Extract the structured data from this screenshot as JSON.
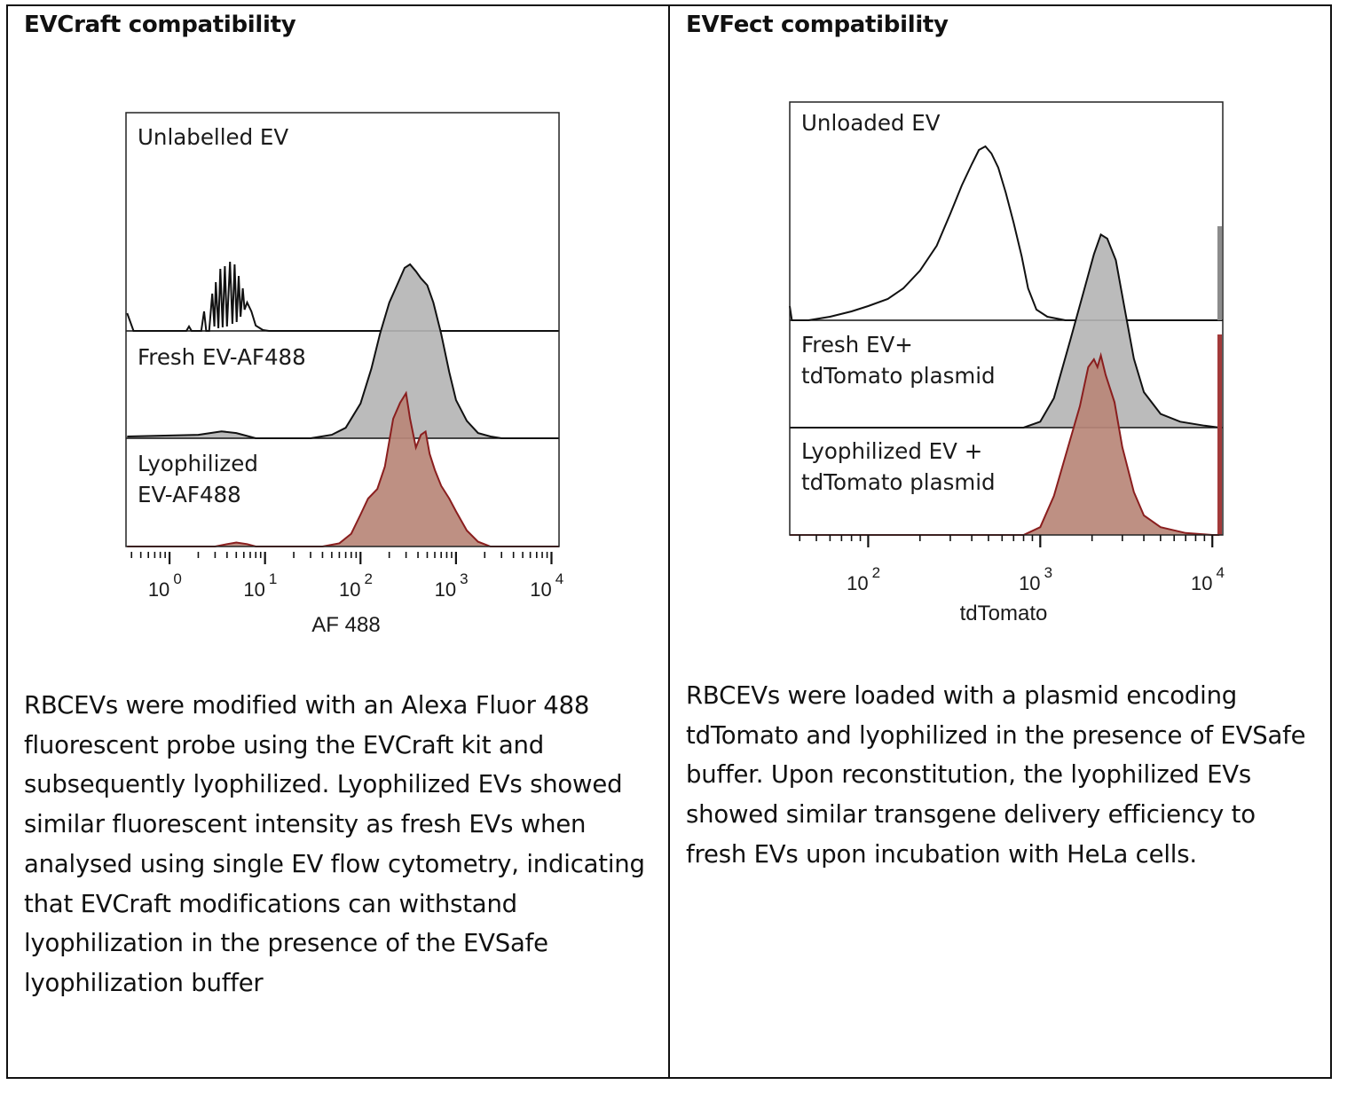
{
  "left": {
    "heading": "EVCraft compatibility",
    "paragraph": "RBCEVs were modified with an Alexa Fluor 488 fluorescent probe using the EVCraft kit and subsequently lyophilized. Lyophilized EVs showed similar fluorescent intensity as fresh EVs when analysed using single EV flow cytometry, indicating that EVCraft modifications can withstand lyophilization in the presence of the EVSafe lyophilization buffer"
  },
  "right": {
    "heading": "EVFect compatibility",
    "paragraph": "RBCEVs were loaded with a plasmid encoding tdTomato and lyophilized in the presence of EVSafe buffer. Upon reconstitution, the lyophilized EVs showed similar transgene delivery efficiency to fresh EVs upon incubation with HeLa cells."
  },
  "chart_data": [
    {
      "type": "area",
      "xlabel": "AF 488",
      "x_scale": "log",
      "xlim": [
        0.35,
        12000
      ],
      "x_ticks": [
        {
          "base": "10",
          "exp": "0",
          "value": 1
        },
        {
          "base": "10",
          "exp": "1",
          "value": 10
        },
        {
          "base": "10",
          "exp": "2",
          "value": 100
        },
        {
          "base": "10",
          "exp": "3",
          "value": 1000
        },
        {
          "base": "10",
          "exp": "4",
          "value": 10000
        }
      ],
      "panels": [
        {
          "label_lines": [
            "Unlabelled EV"
          ],
          "fill": "none",
          "stroke": "#111111",
          "points": [
            [
              0.36,
              0.2
            ],
            [
              0.42,
              0.0
            ],
            [
              1.5,
              0.0
            ],
            [
              1.6,
              0.05
            ],
            [
              1.7,
              0.0
            ],
            [
              2.15,
              0.0
            ],
            [
              2.3,
              0.22
            ],
            [
              2.42,
              0.0
            ],
            [
              2.6,
              0.0
            ],
            [
              2.8,
              0.42
            ],
            [
              2.95,
              0.05
            ],
            [
              3.05,
              0.55
            ],
            [
              3.25,
              0.03
            ],
            [
              3.4,
              0.7
            ],
            [
              3.6,
              0.04
            ],
            [
              3.8,
              0.73
            ],
            [
              4.0,
              0.05
            ],
            [
              4.3,
              0.78
            ],
            [
              4.55,
              0.08
            ],
            [
              4.8,
              0.75
            ],
            [
              5.05,
              0.1
            ],
            [
              5.3,
              0.62
            ],
            [
              5.55,
              0.16
            ],
            [
              5.85,
              0.48
            ],
            [
              6.1,
              0.24
            ],
            [
              6.5,
              0.32
            ],
            [
              7.2,
              0.22
            ],
            [
              8.0,
              0.06
            ],
            [
              9.5,
              0.01
            ],
            [
              11,
              0.0
            ],
            [
              12000,
              0.0
            ]
          ]
        },
        {
          "label_lines": [
            "Fresh EV-AF488"
          ],
          "fill": "#b5b5b5",
          "stroke": "#111111",
          "points": [
            [
              0.36,
              0.01
            ],
            [
              2,
              0.02
            ],
            [
              3.5,
              0.04
            ],
            [
              5,
              0.03
            ],
            [
              8,
              0.0
            ],
            [
              30,
              0.0
            ],
            [
              50,
              0.02
            ],
            [
              70,
              0.06
            ],
            [
              100,
              0.2
            ],
            [
              130,
              0.4
            ],
            [
              160,
              0.6
            ],
            [
              200,
              0.78
            ],
            [
              250,
              0.9
            ],
            [
              290,
              0.98
            ],
            [
              330,
              1.0
            ],
            [
              380,
              0.96
            ],
            [
              430,
              0.92
            ],
            [
              500,
              0.88
            ],
            [
              580,
              0.78
            ],
            [
              700,
              0.6
            ],
            [
              850,
              0.38
            ],
            [
              1000,
              0.22
            ],
            [
              1300,
              0.1
            ],
            [
              1700,
              0.03
            ],
            [
              2300,
              0.01
            ],
            [
              3000,
              0.0
            ],
            [
              12000,
              0.0
            ]
          ]
        },
        {
          "label_lines": [
            "Lyophilized",
            "EV-AF488"
          ],
          "fill": "#b98778",
          "stroke": "#8a1e1e",
          "points": [
            [
              0.36,
              0.0
            ],
            [
              3,
              0.0
            ],
            [
              4,
              0.015
            ],
            [
              5,
              0.025
            ],
            [
              6.5,
              0.015
            ],
            [
              8,
              0.0
            ],
            [
              40,
              0.0
            ],
            [
              60,
              0.02
            ],
            [
              80,
              0.08
            ],
            [
              100,
              0.2
            ],
            [
              120,
              0.3
            ],
            [
              150,
              0.36
            ],
            [
              180,
              0.5
            ],
            [
              220,
              0.8
            ],
            [
              260,
              0.9
            ],
            [
              300,
              0.96
            ],
            [
              330,
              0.8
            ],
            [
              380,
              0.62
            ],
            [
              430,
              0.7
            ],
            [
              480,
              0.72
            ],
            [
              530,
              0.58
            ],
            [
              600,
              0.48
            ],
            [
              700,
              0.38
            ],
            [
              850,
              0.3
            ],
            [
              1000,
              0.22
            ],
            [
              1300,
              0.1
            ],
            [
              1700,
              0.03
            ],
            [
              2300,
              0.0
            ],
            [
              12000,
              0.0
            ]
          ]
        }
      ]
    },
    {
      "type": "area",
      "xlabel": "tdTomato",
      "x_scale": "log",
      "xlim": [
        35,
        11500
      ],
      "x_ticks": [
        {
          "base": "10",
          "exp": "2",
          "value": 100
        },
        {
          "base": "10",
          "exp": "3",
          "value": 1000
        },
        {
          "base": "10",
          "exp": "4",
          "value": 10000
        }
      ],
      "panels": [
        {
          "label_lines": [
            "Unloaded EV"
          ],
          "fill": "none",
          "stroke": "#111111",
          "points": [
            [
              35,
              0.08
            ],
            [
              36,
              0.0
            ],
            [
              45,
              0.0
            ],
            [
              60,
              0.02
            ],
            [
              80,
              0.05
            ],
            [
              100,
              0.08
            ],
            [
              130,
              0.12
            ],
            [
              160,
              0.18
            ],
            [
              200,
              0.28
            ],
            [
              250,
              0.42
            ],
            [
              300,
              0.6
            ],
            [
              350,
              0.76
            ],
            [
              400,
              0.88
            ],
            [
              440,
              0.96
            ],
            [
              480,
              0.98
            ],
            [
              520,
              0.94
            ],
            [
              570,
              0.86
            ],
            [
              630,
              0.72
            ],
            [
              700,
              0.55
            ],
            [
              780,
              0.36
            ],
            [
              850,
              0.18
            ],
            [
              950,
              0.06
            ],
            [
              1100,
              0.02
            ],
            [
              1400,
              0.0
            ],
            [
              11500,
              0.0
            ]
          ]
        },
        {
          "label_lines": [
            "Fresh EV+",
            "tdTomato plasmid"
          ],
          "fill": "#b5b5b5",
          "stroke": "#111111",
          "points": [
            [
              35,
              0.0
            ],
            [
              800,
              0.0
            ],
            [
              1000,
              0.03
            ],
            [
              1200,
              0.15
            ],
            [
              1500,
              0.45
            ],
            [
              1800,
              0.7
            ],
            [
              2050,
              0.88
            ],
            [
              2250,
              0.98
            ],
            [
              2450,
              0.96
            ],
            [
              2750,
              0.85
            ],
            [
              3100,
              0.6
            ],
            [
              3500,
              0.35
            ],
            [
              4000,
              0.18
            ],
            [
              5000,
              0.07
            ],
            [
              6500,
              0.03
            ],
            [
              9000,
              0.01
            ],
            [
              11000,
              0.0
            ]
          ]
        },
        {
          "label_lines": [
            "Lyophilized EV +",
            "tdTomato plasmid"
          ],
          "fill": "#b98778",
          "stroke": "#8a1e1e",
          "points": [
            [
              35,
              0.0
            ],
            [
              800,
              0.0
            ],
            [
              1000,
              0.04
            ],
            [
              1200,
              0.2
            ],
            [
              1450,
              0.45
            ],
            [
              1700,
              0.66
            ],
            [
              1900,
              0.86
            ],
            [
              2050,
              0.9
            ],
            [
              2150,
              0.86
            ],
            [
              2250,
              0.92
            ],
            [
              2400,
              0.82
            ],
            [
              2700,
              0.68
            ],
            [
              3000,
              0.45
            ],
            [
              3500,
              0.22
            ],
            [
              4000,
              0.1
            ],
            [
              5000,
              0.04
            ],
            [
              7000,
              0.01
            ],
            [
              10000,
              0.0
            ],
            [
              11000,
              0.0
            ]
          ]
        }
      ]
    }
  ]
}
